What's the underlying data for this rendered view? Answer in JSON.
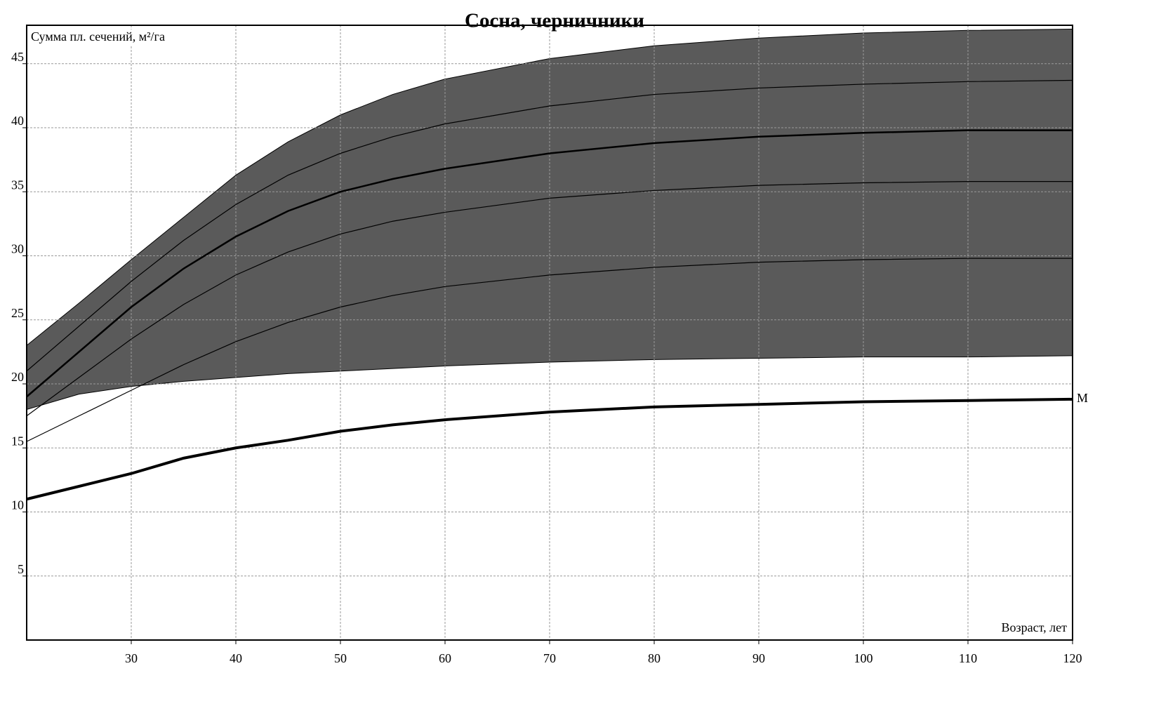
{
  "chart_data": {
    "type": "line",
    "title": "Сосна, черничники",
    "y_label": "Сумма пл. сечений, м²/га",
    "x_label": "Возраст, лет",
    "x": [
      20,
      25,
      30,
      35,
      40,
      45,
      50,
      55,
      60,
      70,
      80,
      90,
      100,
      110,
      120
    ],
    "band": {
      "color": "#5a5a5a",
      "upper": [
        23,
        26.3,
        29.7,
        33,
        36.3,
        38.9,
        41,
        42.6,
        43.8,
        45.4,
        46.4,
        47,
        47.4,
        47.6,
        47.7
      ],
      "lower": [
        18,
        19.2,
        19.8,
        20.2,
        20.5,
        20.8,
        21,
        21.2,
        21.4,
        21.7,
        21.9,
        22,
        22.1,
        22.1,
        22.2
      ]
    },
    "series": [
      {
        "color": "#000000",
        "width": 1.2,
        "values": [
          21,
          24.5,
          28,
          31.2,
          34,
          36.3,
          38,
          39.3,
          40.3,
          41.7,
          42.6,
          43.1,
          43.4,
          43.6,
          43.7
        ]
      },
      {
        "color": "#000000",
        "width": 2.5,
        "values": [
          19,
          22.5,
          26,
          29,
          31.5,
          33.5,
          35,
          36,
          36.8,
          38,
          38.8,
          39.3,
          39.6,
          39.8,
          39.8
        ]
      },
      {
        "color": "#000000",
        "width": 1.2,
        "values": [
          17.5,
          20.5,
          23.5,
          26.2,
          28.5,
          30.3,
          31.7,
          32.7,
          33.4,
          34.5,
          35.1,
          35.5,
          35.7,
          35.8,
          35.8
        ]
      },
      {
        "color": "#000000",
        "width": 1.2,
        "values": [
          15.5,
          17.5,
          19.5,
          21.5,
          23.3,
          24.8,
          26,
          26.9,
          27.6,
          28.5,
          29.1,
          29.5,
          29.7,
          29.8,
          29.8
        ]
      },
      {
        "name": "М",
        "color": "#000000",
        "width": 4,
        "values": [
          11,
          12,
          13,
          14.2,
          15,
          15.6,
          16.3,
          16.8,
          17.2,
          17.8,
          18.2,
          18.4,
          18.6,
          18.7,
          18.8
        ]
      }
    ],
    "xlim": [
      20,
      120
    ],
    "ylim": [
      0,
      48
    ],
    "xticks": [
      30,
      40,
      50,
      60,
      70,
      80,
      90,
      100,
      110,
      120
    ],
    "yticks": [
      5,
      10,
      15,
      20,
      25,
      30,
      35,
      40,
      45
    ],
    "grid": true
  }
}
